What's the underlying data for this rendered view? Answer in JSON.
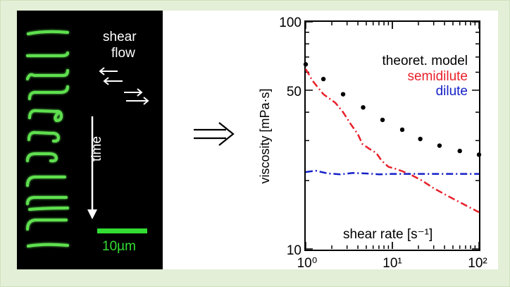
{
  "micrograph": {
    "label_shear": "shear",
    "label_flow": "flow",
    "label_time": "time",
    "scalebar_label": "10µm"
  },
  "colors": {
    "background": "#e3efd6",
    "dna_green": "#5fe050",
    "scalebar_green": "#33dd33",
    "model": "#000000",
    "semidilute": "#e8202a",
    "dilute": "#1520c8"
  },
  "chart_data": {
    "type": "line",
    "xscale": "log",
    "yscale": "log",
    "xlim": [
      1,
      100
    ],
    "ylim": [
      10,
      100
    ],
    "xlabel": "shear rate [s⁻¹]",
    "ylabel": "viscosity [mPa·s]",
    "x_ticks": [
      "10⁰",
      "10¹",
      "10²"
    ],
    "y_ticks": [
      "10",
      "50",
      "100"
    ],
    "legend_position": "top-right",
    "series": [
      {
        "name": "theoret. model",
        "style": "dots",
        "color": "#000000",
        "x": [
          1,
          1.6,
          2.7,
          4.6,
          7.7,
          13,
          21,
          35,
          60,
          100
        ],
        "y": [
          65,
          56,
          48,
          42,
          37,
          33.5,
          30.5,
          28.5,
          27,
          26
        ]
      },
      {
        "name": "semidilute",
        "style": "dash-dot",
        "color": "#e8202a",
        "x": [
          0.9,
          1.2,
          1.6,
          2.2,
          2.7,
          3.3,
          4.0,
          4.5,
          5.5,
          6.5,
          7.5,
          9.0,
          11,
          13,
          16,
          22,
          30,
          45,
          65,
          100
        ],
        "y": [
          62,
          55,
          48,
          44,
          40,
          35.5,
          32,
          29,
          27.5,
          26.5,
          24.5,
          23,
          22.5,
          22,
          21.3,
          20,
          18.5,
          17,
          15.8,
          14.5
        ]
      },
      {
        "name": "dilute",
        "style": "dash-dot",
        "color": "#1520c8",
        "x": [
          1,
          1.3,
          1.8,
          2.5,
          3.5,
          5,
          7,
          10,
          15,
          25,
          40,
          65,
          100
        ],
        "y": [
          21.8,
          22.1,
          21.5,
          21.3,
          21.6,
          21.5,
          21.3,
          21.4,
          21.4,
          21.4,
          21.4,
          21.4,
          21.4
        ]
      }
    ]
  }
}
